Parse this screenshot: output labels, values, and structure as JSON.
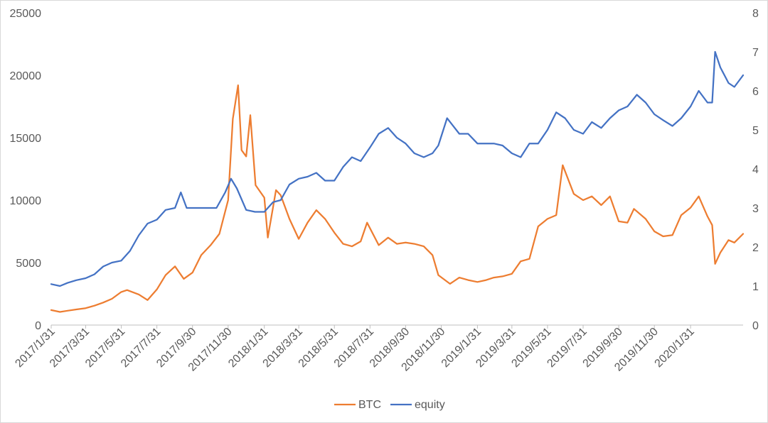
{
  "chart_data": {
    "type": "line",
    "title": "",
    "xlabel": "",
    "ylabel": "",
    "y2label": "",
    "ylim": [
      0,
      25000
    ],
    "y2lim": [
      0,
      8
    ],
    "grid": false,
    "legend_position": "bottom",
    "x_ticks": [
      "2017/1/31",
      "2017/3/31",
      "2017/5/31",
      "2017/7/31",
      "2017/9/30",
      "2017/11/30",
      "2018/1/31",
      "2018/3/31",
      "2018/5/31",
      "2018/7/31",
      "2018/9/30",
      "2018/11/30",
      "2019/1/31",
      "2019/3/31",
      "2019/5/31",
      "2019/7/31",
      "2019/9/30",
      "2019/11/30",
      "2020/1/31"
    ],
    "y_ticks": [
      "0",
      "5000",
      "10000",
      "15000",
      "20000",
      "25000"
    ],
    "y2_ticks": [
      "0",
      "1",
      "2",
      "3",
      "4",
      "5",
      "6",
      "7",
      "8"
    ],
    "series": [
      {
        "name": "BTC",
        "axis": "left",
        "color": "#ED7D31",
        "points": [
          [
            "2017-01-31",
            1200
          ],
          [
            "2017-02-15",
            1050
          ],
          [
            "2017-02-28",
            1150
          ],
          [
            "2017-03-15",
            1250
          ],
          [
            "2017-03-31",
            1350
          ],
          [
            "2017-04-15",
            1550
          ],
          [
            "2017-04-30",
            1800
          ],
          [
            "2017-05-15",
            2100
          ],
          [
            "2017-05-31",
            2650
          ],
          [
            "2017-06-10",
            2800
          ],
          [
            "2017-06-30",
            2450
          ],
          [
            "2017-07-15",
            2000
          ],
          [
            "2017-07-31",
            2850
          ],
          [
            "2017-08-15",
            4000
          ],
          [
            "2017-08-31",
            4700
          ],
          [
            "2017-09-15",
            3700
          ],
          [
            "2017-09-30",
            4200
          ],
          [
            "2017-10-15",
            5600
          ],
          [
            "2017-10-31",
            6400
          ],
          [
            "2017-11-15",
            7300
          ],
          [
            "2017-11-30",
            10000
          ],
          [
            "2017-12-08",
            16500
          ],
          [
            "2017-12-17",
            19200
          ],
          [
            "2017-12-23",
            14000
          ],
          [
            "2017-12-31",
            13500
          ],
          [
            "2018-01-07",
            16800
          ],
          [
            "2018-01-16",
            11200
          ],
          [
            "2018-01-31",
            10200
          ],
          [
            "2018-02-06",
            7000
          ],
          [
            "2018-02-20",
            10800
          ],
          [
            "2018-02-28",
            10400
          ],
          [
            "2018-03-15",
            8500
          ],
          [
            "2018-03-31",
            6900
          ],
          [
            "2018-04-15",
            8200
          ],
          [
            "2018-04-30",
            9200
          ],
          [
            "2018-05-15",
            8500
          ],
          [
            "2018-05-31",
            7400
          ],
          [
            "2018-06-15",
            6500
          ],
          [
            "2018-06-30",
            6300
          ],
          [
            "2018-07-15",
            6700
          ],
          [
            "2018-07-26",
            8200
          ],
          [
            "2018-08-15",
            6400
          ],
          [
            "2018-08-31",
            7000
          ],
          [
            "2018-09-15",
            6500
          ],
          [
            "2018-09-30",
            6600
          ],
          [
            "2018-10-15",
            6500
          ],
          [
            "2018-10-31",
            6300
          ],
          [
            "2018-11-15",
            5600
          ],
          [
            "2018-11-25",
            4000
          ],
          [
            "2018-12-15",
            3300
          ],
          [
            "2018-12-31",
            3800
          ],
          [
            "2019-01-15",
            3600
          ],
          [
            "2019-01-31",
            3450
          ],
          [
            "2019-02-15",
            3600
          ],
          [
            "2019-02-28",
            3800
          ],
          [
            "2019-03-15",
            3900
          ],
          [
            "2019-03-31",
            4100
          ],
          [
            "2019-04-15",
            5100
          ],
          [
            "2019-04-30",
            5300
          ],
          [
            "2019-05-15",
            7900
          ],
          [
            "2019-05-31",
            8500
          ],
          [
            "2019-06-15",
            8800
          ],
          [
            "2019-06-26",
            12800
          ],
          [
            "2019-07-15",
            10500
          ],
          [
            "2019-07-31",
            10000
          ],
          [
            "2019-08-15",
            10300
          ],
          [
            "2019-08-31",
            9600
          ],
          [
            "2019-09-15",
            10300
          ],
          [
            "2019-09-30",
            8300
          ],
          [
            "2019-10-15",
            8200
          ],
          [
            "2019-10-26",
            9300
          ],
          [
            "2019-11-15",
            8500
          ],
          [
            "2019-11-30",
            7500
          ],
          [
            "2019-12-15",
            7100
          ],
          [
            "2019-12-31",
            7200
          ],
          [
            "2020-01-15",
            8800
          ],
          [
            "2020-01-31",
            9400
          ],
          [
            "2020-02-14",
            10300
          ],
          [
            "2020-02-29",
            8700
          ],
          [
            "2020-03-08",
            8000
          ],
          [
            "2020-03-13",
            4900
          ],
          [
            "2020-03-22",
            5800
          ],
          [
            "2020-04-05",
            6800
          ],
          [
            "2020-04-15",
            6600
          ],
          [
            "2020-04-30",
            7300
          ]
        ]
      },
      {
        "name": "equity",
        "axis": "right",
        "color": "#4472C4",
        "points": [
          [
            "2017-01-31",
            1.05
          ],
          [
            "2017-02-15",
            1.0
          ],
          [
            "2017-02-28",
            1.08
          ],
          [
            "2017-03-15",
            1.15
          ],
          [
            "2017-03-31",
            1.2
          ],
          [
            "2017-04-15",
            1.3
          ],
          [
            "2017-04-30",
            1.5
          ],
          [
            "2017-05-15",
            1.6
          ],
          [
            "2017-05-31",
            1.65
          ],
          [
            "2017-06-15",
            1.9
          ],
          [
            "2017-06-30",
            2.3
          ],
          [
            "2017-07-15",
            2.6
          ],
          [
            "2017-07-31",
            2.7
          ],
          [
            "2017-08-15",
            2.95
          ],
          [
            "2017-08-31",
            3.0
          ],
          [
            "2017-09-10",
            3.4
          ],
          [
            "2017-09-20",
            3.0
          ],
          [
            "2017-09-30",
            3.0
          ],
          [
            "2017-10-15",
            3.0
          ],
          [
            "2017-10-31",
            3.0
          ],
          [
            "2017-11-10",
            3.0
          ],
          [
            "2017-11-25",
            3.4
          ],
          [
            "2017-12-05",
            3.75
          ],
          [
            "2017-12-15",
            3.5
          ],
          [
            "2017-12-31",
            2.95
          ],
          [
            "2018-01-15",
            2.9
          ],
          [
            "2018-01-31",
            2.9
          ],
          [
            "2018-02-15",
            3.15
          ],
          [
            "2018-02-28",
            3.2
          ],
          [
            "2018-03-15",
            3.6
          ],
          [
            "2018-03-31",
            3.75
          ],
          [
            "2018-04-15",
            3.8
          ],
          [
            "2018-04-30",
            3.9
          ],
          [
            "2018-05-15",
            3.7
          ],
          [
            "2018-05-31",
            3.7
          ],
          [
            "2018-06-15",
            4.05
          ],
          [
            "2018-06-30",
            4.3
          ],
          [
            "2018-07-15",
            4.2
          ],
          [
            "2018-07-31",
            4.55
          ],
          [
            "2018-08-15",
            4.9
          ],
          [
            "2018-08-31",
            5.05
          ],
          [
            "2018-09-15",
            4.8
          ],
          [
            "2018-09-30",
            4.65
          ],
          [
            "2018-10-15",
            4.4
          ],
          [
            "2018-10-31",
            4.3
          ],
          [
            "2018-11-15",
            4.4
          ],
          [
            "2018-11-25",
            4.6
          ],
          [
            "2018-12-10",
            5.3
          ],
          [
            "2018-12-31",
            4.9
          ],
          [
            "2019-01-15",
            4.9
          ],
          [
            "2019-01-31",
            4.65
          ],
          [
            "2019-02-15",
            4.65
          ],
          [
            "2019-02-28",
            4.65
          ],
          [
            "2019-03-15",
            4.6
          ],
          [
            "2019-03-31",
            4.4
          ],
          [
            "2019-04-15",
            4.3
          ],
          [
            "2019-04-30",
            4.65
          ],
          [
            "2019-05-15",
            4.65
          ],
          [
            "2019-05-31",
            5.0
          ],
          [
            "2019-06-15",
            5.45
          ],
          [
            "2019-06-30",
            5.3
          ],
          [
            "2019-07-15",
            5.0
          ],
          [
            "2019-07-31",
            4.9
          ],
          [
            "2019-08-15",
            5.2
          ],
          [
            "2019-08-31",
            5.05
          ],
          [
            "2019-09-15",
            5.3
          ],
          [
            "2019-09-30",
            5.5
          ],
          [
            "2019-10-15",
            5.6
          ],
          [
            "2019-10-31",
            5.9
          ],
          [
            "2019-11-15",
            5.7
          ],
          [
            "2019-11-30",
            5.4
          ],
          [
            "2019-12-15",
            5.25
          ],
          [
            "2019-12-31",
            5.1
          ],
          [
            "2020-01-15",
            5.3
          ],
          [
            "2020-01-31",
            5.6
          ],
          [
            "2020-02-14",
            6.0
          ],
          [
            "2020-02-29",
            5.7
          ],
          [
            "2020-03-08",
            5.7
          ],
          [
            "2020-03-13",
            7.0
          ],
          [
            "2020-03-22",
            6.6
          ],
          [
            "2020-04-05",
            6.2
          ],
          [
            "2020-04-15",
            6.1
          ],
          [
            "2020-04-30",
            6.4
          ]
        ]
      }
    ]
  }
}
